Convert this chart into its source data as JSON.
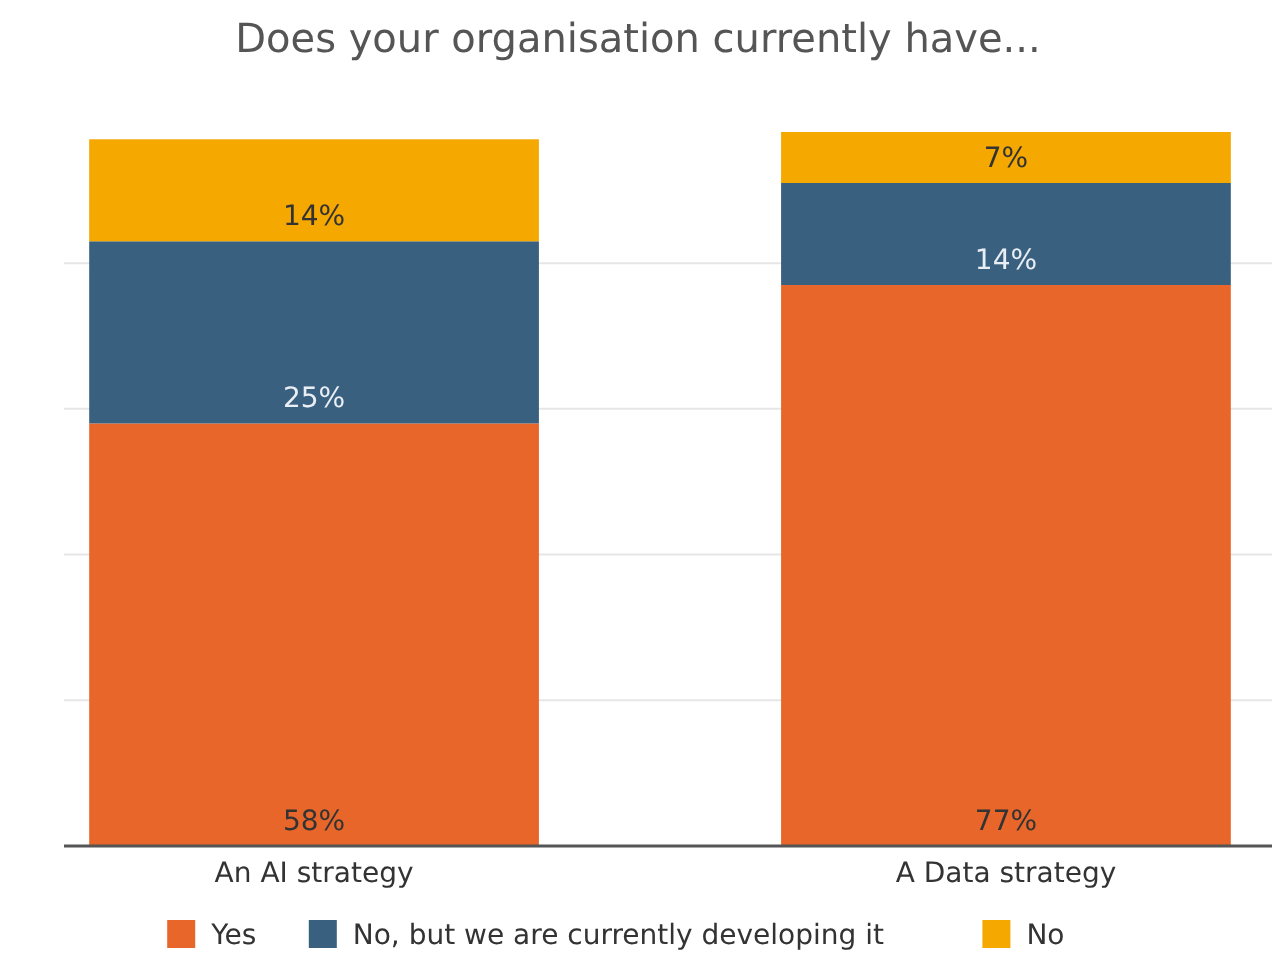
{
  "chart_data": {
    "type": "bar",
    "title": "Does your organisation currently have...",
    "categories": [
      "An AI strategy",
      "A Data strategy"
    ],
    "stacked": true,
    "series": [
      {
        "name": "Yes",
        "color": "#e8662a",
        "values": [
          58,
          77
        ],
        "value_labels": [
          "58%",
          "77%"
        ]
      },
      {
        "name": "No, but we are currently developing it",
        "color": "#3a6080",
        "values": [
          25,
          14
        ],
        "value_labels": [
          "25%",
          "14%"
        ]
      },
      {
        "name": "No",
        "color": "#f5a800",
        "values": [
          14,
          7
        ],
        "value_labels": [
          "14%",
          "7%"
        ]
      }
    ],
    "tick_labels": "x",
    "grid": "y",
    "legend": "bottom"
  }
}
